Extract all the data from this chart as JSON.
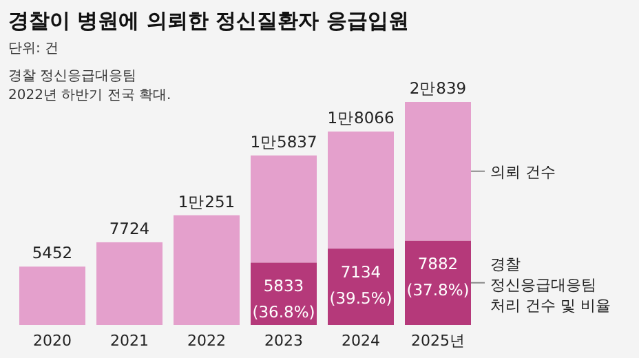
{
  "chart_data": {
    "type": "bar",
    "stacked": true,
    "title": "경찰이 병원에 의뢰한 정신질환자 응급입원",
    "subtitle": "단위: 건",
    "annotations": [
      "경찰 정신응급대응팀\n2022년 하반기 전국 확대."
    ],
    "categories": [
      "2020",
      "2021",
      "2022",
      "2023",
      "2024",
      "2025년"
    ],
    "series": [
      {
        "name": "경찰\n정신응급대응팀\n처리 건수 및 비율",
        "color": "#b5397a",
        "values": [
          null,
          null,
          null,
          5833,
          7134,
          7882
        ],
        "value_labels": [
          null,
          null,
          null,
          "5833\n(36.8%)",
          "7134\n(39.5%)",
          "7882\n(37.8%)"
        ]
      },
      {
        "name": "의뢰 건수",
        "color": "#e4a0cc",
        "values": [
          5452,
          7724,
          10251,
          10004,
          10932,
          12957
        ]
      }
    ],
    "totals": [
      "5452",
      "7724",
      "1만251",
      "1만5837",
      "1만8066",
      "2만839"
    ]
  }
}
